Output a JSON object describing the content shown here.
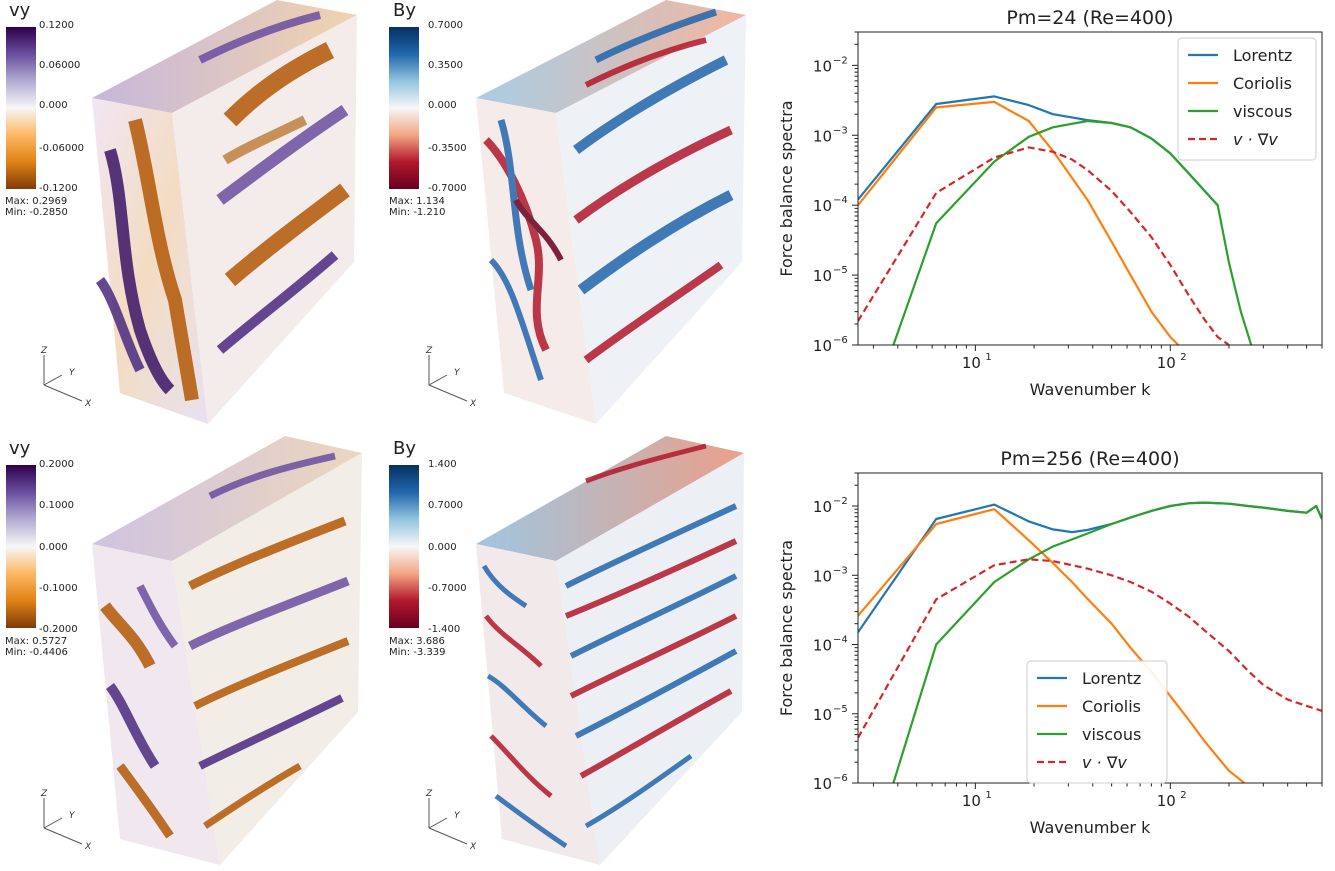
{
  "colors": {
    "lorentz": "#1f77b4",
    "coriolis": "#ff7f0e",
    "viscous": "#2ca02c",
    "advection": "#d62728",
    "vy_low": "#7f3b08",
    "vy_mid": "#f7f7f7",
    "vy_high": "#2d004b",
    "by_low": "#67001f",
    "by_mid": "#f7f7f7",
    "by_high": "#053061"
  },
  "rows": [
    {
      "vy": {
        "title": "vy",
        "ticks": [
          "0.1200",
          "0.06000",
          "0.000",
          "-0.06000",
          "-0.1200"
        ],
        "max": "Max:  0.2969",
        "min": "Min:  -0.2850"
      },
      "by": {
        "title": "By",
        "ticks": [
          "0.7000",
          "0.3500",
          "0.000",
          "-0.3500",
          "-0.7000"
        ],
        "max": "Max:  1.134",
        "min": "Min:  -1.210"
      }
    },
    {
      "vy": {
        "title": "vy",
        "ticks": [
          "0.2000",
          "0.1000",
          "0.000",
          "-0.1000",
          "-0.2000"
        ],
        "max": "Max:  0.5727",
        "min": "Min:  -0.4406"
      },
      "by": {
        "title": "By",
        "ticks": [
          "1.400",
          "0.7000",
          "0.000",
          "-0.7000",
          "-1.400"
        ],
        "max": "Max:  3.686",
        "min": "Min:  -3.339"
      }
    }
  ],
  "axes_labels": {
    "z": "Z",
    "y": "Y",
    "x": "X"
  },
  "chart_data": [
    {
      "type": "line",
      "title": "Pm=24 (Re=400)",
      "xlabel": "Wavenumber k",
      "ylabel": "Force balance spectra",
      "xscale": "log",
      "yscale": "log",
      "xlim": [
        2.5,
        600
      ],
      "ylim": [
        1e-06,
        0.03
      ],
      "xticklabels": [
        "10",
        "10"
      ],
      "xtick_exponents": [
        "1",
        "2"
      ],
      "yticklabels": [
        "10",
        "10",
        "10",
        "10",
        "10"
      ],
      "ytick_exponents": [
        "−6",
        "−5",
        "−4",
        "−3",
        "−2"
      ],
      "legend_position": "top-right",
      "series": [
        {
          "name": "Lorentz",
          "style": "solid",
          "color_key": "lorentz",
          "x": [
            2.5,
            6.3,
            12.5,
            18.8,
            25,
            31.3,
            37.5,
            50,
            62.5,
            80,
            100,
            125,
            150,
            175
          ],
          "y": [
            0.00012,
            0.0028,
            0.0036,
            0.0027,
            0.002,
            0.0018,
            0.00165,
            0.0015,
            0.0013,
            0.0009,
            0.00055,
            0.00028,
            0.00016,
            0.0001
          ]
        },
        {
          "name": "Coriolis",
          "style": "solid",
          "color_key": "coriolis",
          "x": [
            2.5,
            6.3,
            12.5,
            18.8,
            25,
            37.5,
            50,
            62.5,
            80,
            100,
            110
          ],
          "y": [
            0.0001,
            0.0025,
            0.003,
            0.0016,
            0.0006,
            0.00012,
            3e-05,
            1e-05,
            3e-06,
            1.3e-06,
            1e-06
          ]
        },
        {
          "name": "viscous",
          "style": "solid",
          "color_key": "viscous",
          "x": [
            3.8,
            6.3,
            12.5,
            18.8,
            25,
            37.5,
            50,
            62.5,
            80,
            100,
            125,
            150,
            175,
            200,
            230,
            260
          ],
          "y": [
            1e-06,
            5.5e-05,
            0.00042,
            0.00095,
            0.0013,
            0.0016,
            0.0015,
            0.0013,
            0.0009,
            0.00055,
            0.00028,
            0.00016,
            0.0001,
            1.5e-05,
            3e-06,
            1e-06
          ]
        },
        {
          "name": "v · ∇v",
          "style": "dashed",
          "color_key": "advection",
          "x": [
            2.5,
            6.3,
            12.5,
            18.8,
            25,
            31.3,
            37.5,
            50,
            62.5,
            80,
            100,
            125,
            150,
            175,
            200
          ],
          "y": [
            2.2e-06,
            0.00015,
            0.00048,
            0.00067,
            0.00058,
            0.00045,
            0.00032,
            0.00016,
            8e-05,
            3.5e-05,
            1.4e-05,
            5e-06,
            2.3e-06,
            1.3e-06,
            1e-06
          ]
        }
      ]
    },
    {
      "type": "line",
      "title": "Pm=256 (Re=400)",
      "xlabel": "Wavenumber k",
      "ylabel": "Force balance spectra",
      "xscale": "log",
      "yscale": "log",
      "xlim": [
        2.5,
        600
      ],
      "ylim": [
        1e-06,
        0.03
      ],
      "xticklabels": [
        "10",
        "10"
      ],
      "xtick_exponents": [
        "1",
        "2"
      ],
      "yticklabels": [
        "10",
        "10",
        "10",
        "10",
        "10"
      ],
      "ytick_exponents": [
        "−6",
        "−5",
        "−4",
        "−3",
        "−2"
      ],
      "legend_position": "lower-center",
      "series": [
        {
          "name": "Lorentz",
          "style": "solid",
          "color_key": "lorentz",
          "x": [
            2.5,
            6.3,
            12.5,
            18.8,
            25,
            31.3,
            37.5,
            50,
            62.5,
            80,
            100,
            125,
            150,
            200,
            250,
            300,
            400,
            500,
            560,
            600
          ],
          "y": [
            0.00015,
            0.0065,
            0.0105,
            0.006,
            0.0046,
            0.0042,
            0.0045,
            0.0055,
            0.0068,
            0.0085,
            0.01,
            0.011,
            0.0112,
            0.0108,
            0.01,
            0.0095,
            0.0085,
            0.008,
            0.01,
            0.0065
          ]
        },
        {
          "name": "Coriolis",
          "style": "solid",
          "color_key": "coriolis",
          "x": [
            2.5,
            6.3,
            12.5,
            18.8,
            25,
            31.3,
            37.5,
            50,
            62.5,
            80,
            100,
            125,
            150,
            200,
            240
          ],
          "y": [
            0.00026,
            0.0055,
            0.009,
            0.0032,
            0.0015,
            0.0008,
            0.00046,
            0.0002,
            9e-05,
            4e-05,
            1.8e-05,
            8e-06,
            4e-06,
            1.5e-06,
            1e-06
          ]
        },
        {
          "name": "viscous",
          "style": "solid",
          "color_key": "viscous",
          "x": [
            3.8,
            6.3,
            12.5,
            18.8,
            25,
            31.3,
            37.5,
            50,
            62.5,
            80,
            100,
            125,
            150,
            200,
            250,
            300,
            400,
            500,
            560,
            600
          ],
          "y": [
            1e-06,
            0.0001,
            0.0008,
            0.0017,
            0.0026,
            0.0033,
            0.004,
            0.0055,
            0.0068,
            0.0085,
            0.01,
            0.011,
            0.0112,
            0.0108,
            0.01,
            0.0095,
            0.0085,
            0.008,
            0.01,
            0.0065
          ]
        },
        {
          "name": "v · ∇v",
          "style": "dashed",
          "color_key": "advection",
          "x": [
            2.5,
            6.3,
            12.5,
            18.8,
            25,
            31.3,
            37.5,
            50,
            62.5,
            80,
            100,
            125,
            150,
            200,
            250,
            300,
            400,
            500,
            600
          ],
          "y": [
            4.5e-06,
            0.00045,
            0.0014,
            0.0017,
            0.0016,
            0.0014,
            0.00125,
            0.001,
            0.0008,
            0.00058,
            0.00039,
            0.00025,
            0.00016,
            8e-05,
            4.2e-05,
            2.6e-05,
            1.6e-05,
            1.3e-05,
            1.1e-05
          ]
        }
      ]
    }
  ]
}
